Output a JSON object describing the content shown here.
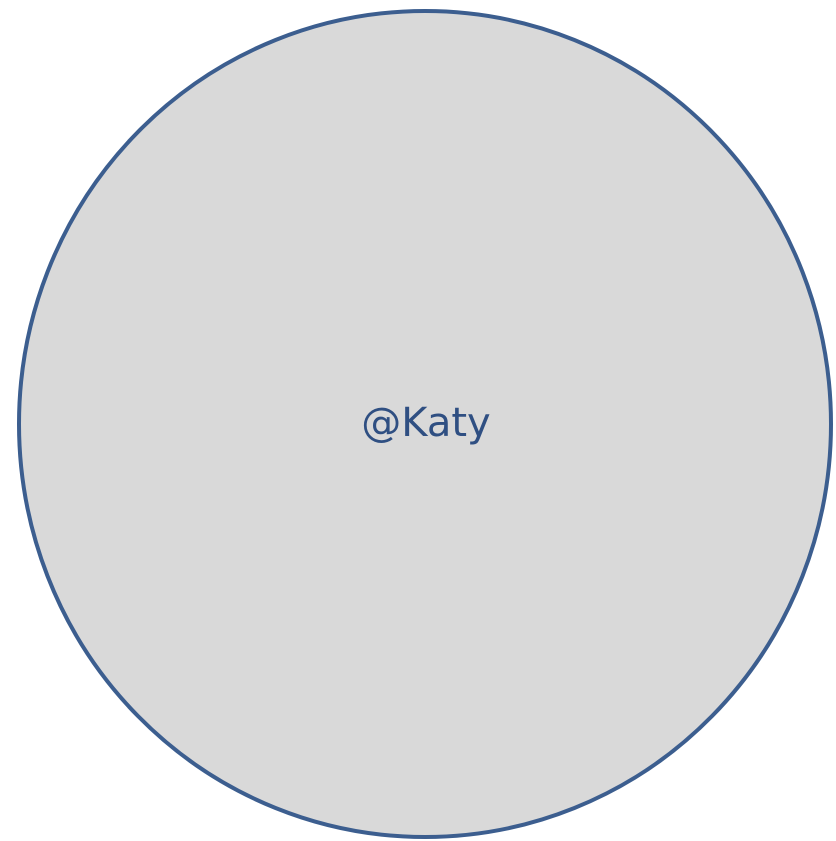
{
  "shape": {
    "label": "@Katy",
    "fill_color": "#d9d9d9",
    "stroke_color": "#3c5e8f",
    "label_color": "#2f4f82"
  }
}
